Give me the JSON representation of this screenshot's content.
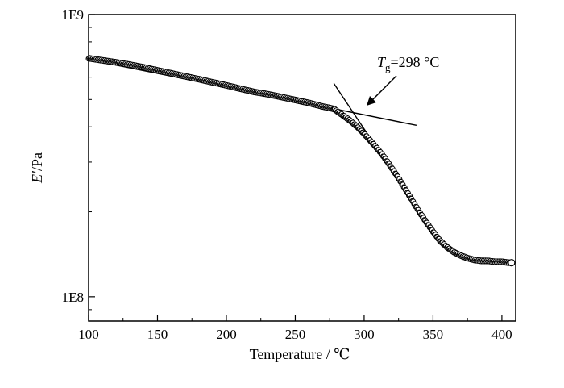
{
  "chart_data": {
    "type": "scatter",
    "title": "",
    "xlabel": "Temperature",
    "xlabel_unit": "℃",
    "ylabel_main": "E′",
    "ylabel_unit": "Pa",
    "xlim": [
      100,
      410
    ],
    "ylim": [
      82000000,
      1000000000
    ],
    "yscale": "log",
    "x_ticks": [
      100,
      150,
      200,
      250,
      300,
      350,
      400
    ],
    "y_ticks": [
      {
        "value": 100000000,
        "label": "1E8"
      },
      {
        "value": 1000000000,
        "label": "1E9"
      }
    ],
    "grid": false,
    "legend": "none",
    "series": [
      {
        "marker": "open-circle",
        "color": "#000000",
        "x": [
          100,
          110,
          120,
          130,
          140,
          150,
          160,
          170,
          180,
          190,
          200,
          210,
          220,
          230,
          240,
          250,
          260,
          270,
          278,
          285,
          290,
          295,
          300,
          305,
          310,
          315,
          320,
          325,
          330,
          335,
          340,
          345,
          350,
          355,
          360,
          365,
          370,
          375,
          380,
          385,
          390,
          395,
          400,
          405,
          407
        ],
        "y": [
          700000000,
          688000000,
          677000000,
          664000000,
          650000000,
          634000000,
          619000000,
          604000000,
          590000000,
          575000000,
          561000000,
          546000000,
          532000000,
          522000000,
          510000000,
          498000000,
          486000000,
          472000000,
          463000000,
          438000000,
          420000000,
          400000000,
          378000000,
          355000000,
          333000000,
          310000000,
          286000000,
          263000000,
          240000000,
          219000000,
          200000000,
          184000000,
          170000000,
          158000000,
          150000000,
          144000000,
          140000000,
          137000000,
          135000000,
          134000000,
          134000000,
          133000000,
          133000000,
          132000000,
          132000000
        ]
      }
    ],
    "tangent_lines": [
      {
        "x": [
          108,
          338
        ],
        "y": [
          680000000,
          405000000
        ]
      },
      {
        "x": [
          278,
          318
        ],
        "y": [
          570000000,
          290000000
        ]
      }
    ],
    "annotations": [
      {
        "symbol": "T",
        "subscript": "g",
        "text": "=298 °C",
        "x": 298,
        "y": 467000000
      }
    ]
  }
}
